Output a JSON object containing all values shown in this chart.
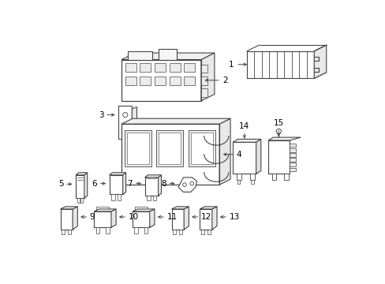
{
  "bg_color": "#ffffff",
  "lc": "#444444",
  "fig_width": 4.89,
  "fig_height": 3.6,
  "dpi": 100
}
